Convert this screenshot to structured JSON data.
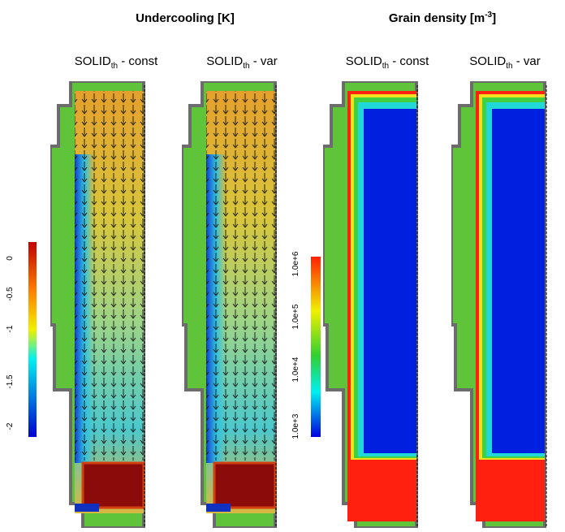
{
  "titles": [
    {
      "text": "Undercooling [K]"
    },
    {
      "text": "Grain density [m",
      "sup": "-3",
      "end": "]"
    }
  ],
  "panels": [
    {
      "main": "SOLID",
      "sub": "th",
      "rest": " - const"
    },
    {
      "main": "SOLID",
      "sub": "th",
      "rest": " - var"
    },
    {
      "main": "SOLID",
      "sub": "th",
      "rest": " - const"
    },
    {
      "main": "SOLID",
      "sub": "th",
      "rest": " - var"
    }
  ],
  "colorbars": [
    {
      "labels": [
        "0",
        "-0.5",
        "-1",
        "-1.5",
        "-2"
      ]
    },
    {
      "labels": [
        "1.0e+6",
        "1.0e+5",
        "1.0e+4",
        "1.0e+3"
      ]
    }
  ]
}
